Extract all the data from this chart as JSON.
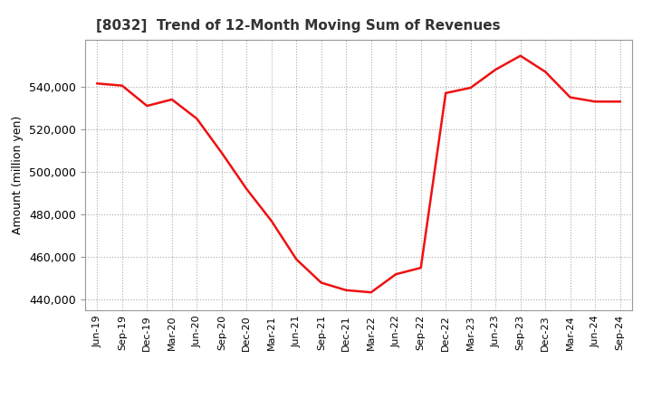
{
  "title": "[8032]  Trend of 12-Month Moving Sum of Revenues",
  "ylabel": "Amount (million yen)",
  "line_color": "#ee1111",
  "background_color": "#ffffff",
  "plot_bg_color": "#ffffff",
  "grid_color": "#aaaaaa",
  "ylim": [
    435000,
    562000
  ],
  "yticks": [
    440000,
    460000,
    480000,
    500000,
    520000,
    540000
  ],
  "x_labels": [
    "Jun-19",
    "Sep-19",
    "Dec-19",
    "Mar-20",
    "Jun-20",
    "Sep-20",
    "Dec-20",
    "Mar-21",
    "Jun-21",
    "Sep-21",
    "Dec-21",
    "Mar-22",
    "Jun-22",
    "Sep-22",
    "Dec-22",
    "Mar-23",
    "Jun-23",
    "Sep-23",
    "Dec-23",
    "Mar-24",
    "Jun-24",
    "Sep-24"
  ],
  "values": [
    541500,
    540500,
    531000,
    534000,
    525000,
    509000,
    492000,
    477000,
    459000,
    448000,
    444500,
    443500,
    452000,
    455000,
    537000,
    539500,
    548000,
    554500,
    547000,
    535000,
    533000,
    533000
  ]
}
